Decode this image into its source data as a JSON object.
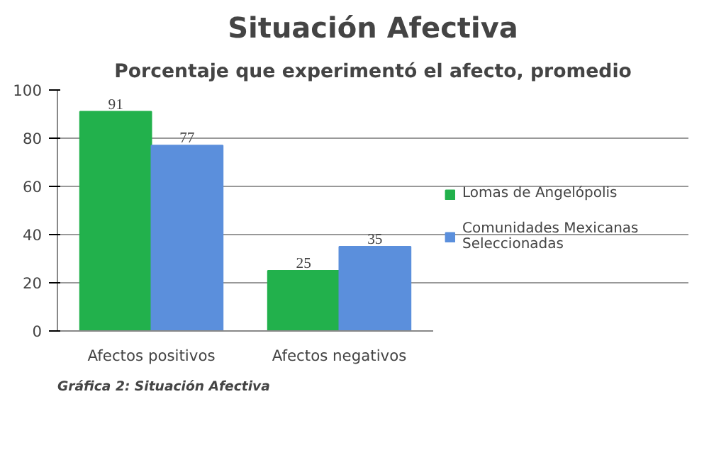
{
  "chart_data": {
    "type": "bar",
    "title": "Situación Afectiva",
    "subtitle": "Porcentaje que experimentó el afecto, promedio",
    "categories": [
      "Afectos positivos",
      "Afectos negativos"
    ],
    "series": [
      {
        "name": "Lomas de Angelópolis",
        "color": "#22b14c",
        "values": [
          91,
          25
        ]
      },
      {
        "name": "Comunidades Mexicanas Seleccionadas",
        "color": "#5b8fdc",
        "values": [
          77,
          35
        ]
      }
    ],
    "ylim": [
      0,
      100
    ],
    "yticks": [
      0,
      20,
      40,
      60,
      80,
      100
    ],
    "grid": "y",
    "legend": "right",
    "data_labels": true,
    "annotations": [
      "Gráfica 2: Situación Afectiva"
    ]
  }
}
